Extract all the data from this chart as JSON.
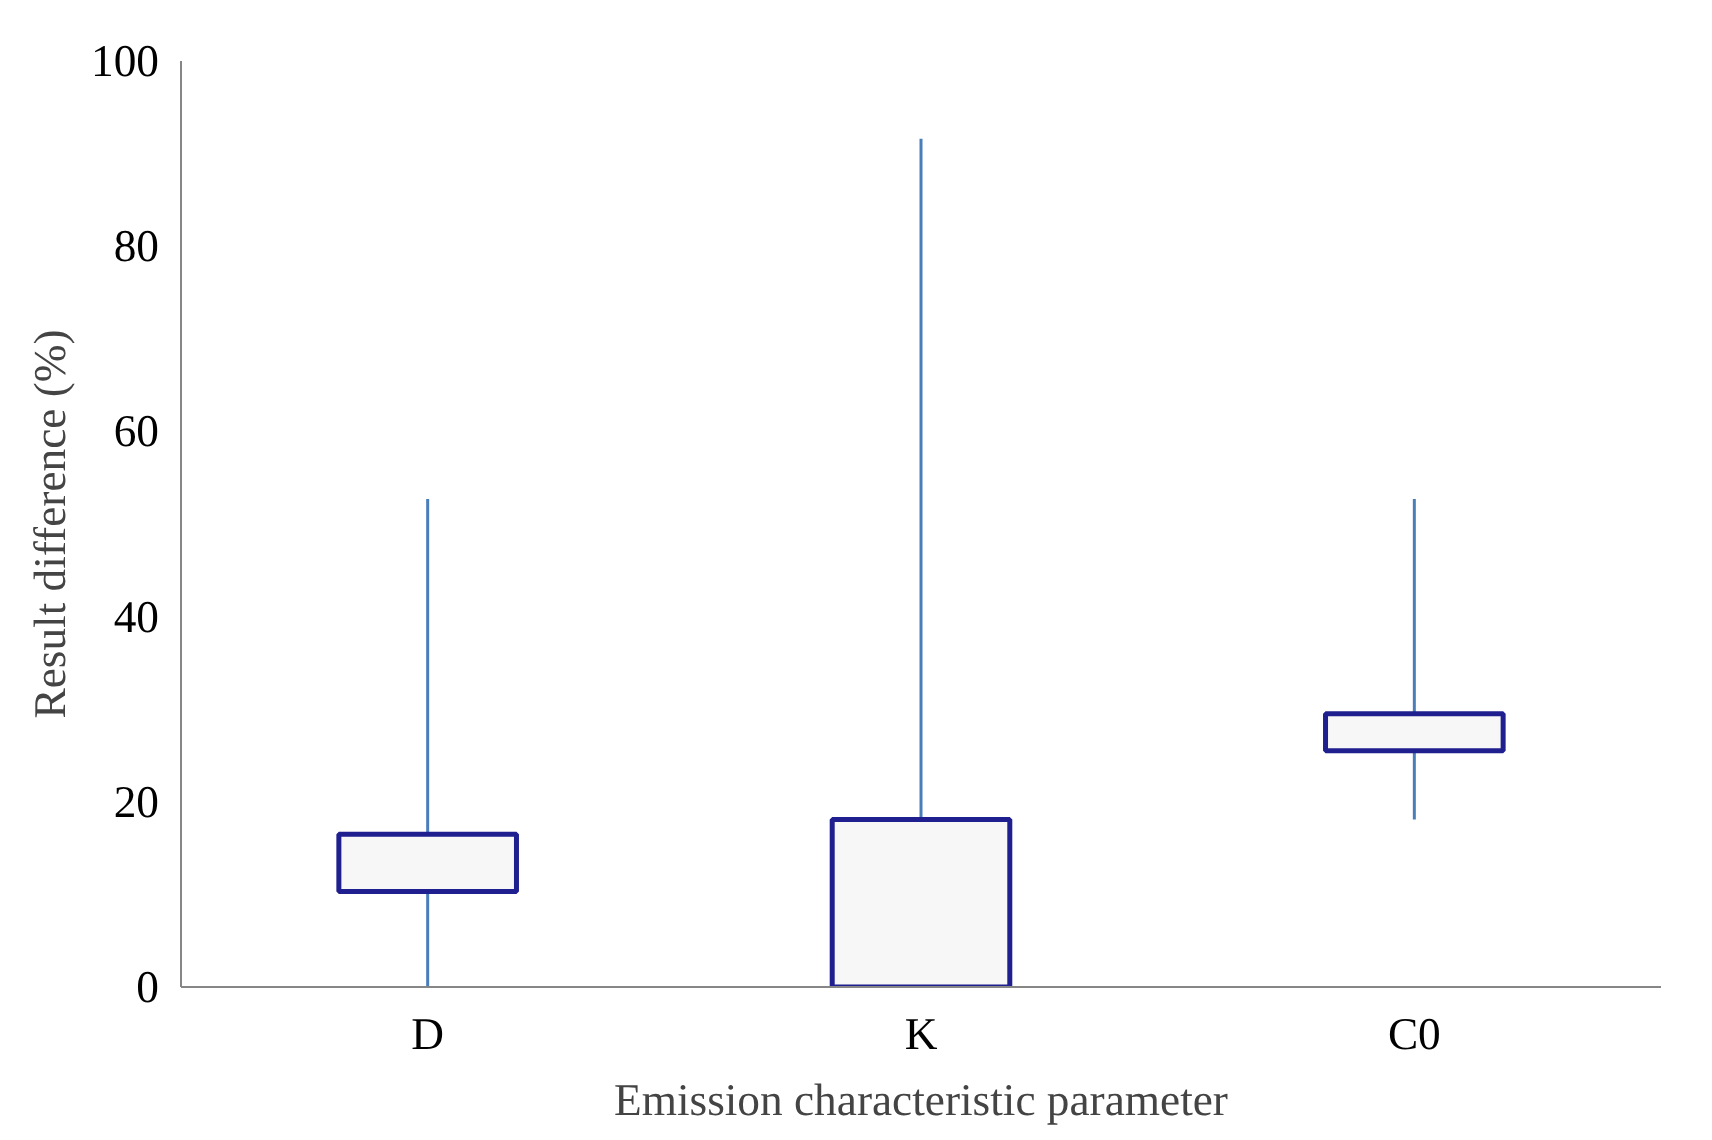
{
  "chart_data": {
    "type": "candlestick",
    "xlabel": "Emission characteristic parameter",
    "ylabel": "Result difference (%)",
    "categories": [
      "D",
      "K",
      "C0"
    ],
    "ohlc": [
      [
        10.3,
        52.7,
        0,
        16.5
      ],
      [
        0,
        91.6,
        0,
        18.1
      ],
      [
        25.5,
        52.7,
        18.1,
        29.5
      ]
    ],
    "color": "#f7f7f7",
    "ylim": [
      0,
      100
    ],
    "yticks": [
      0,
      20,
      40,
      60,
      80,
      100
    ],
    "grid": false
  }
}
